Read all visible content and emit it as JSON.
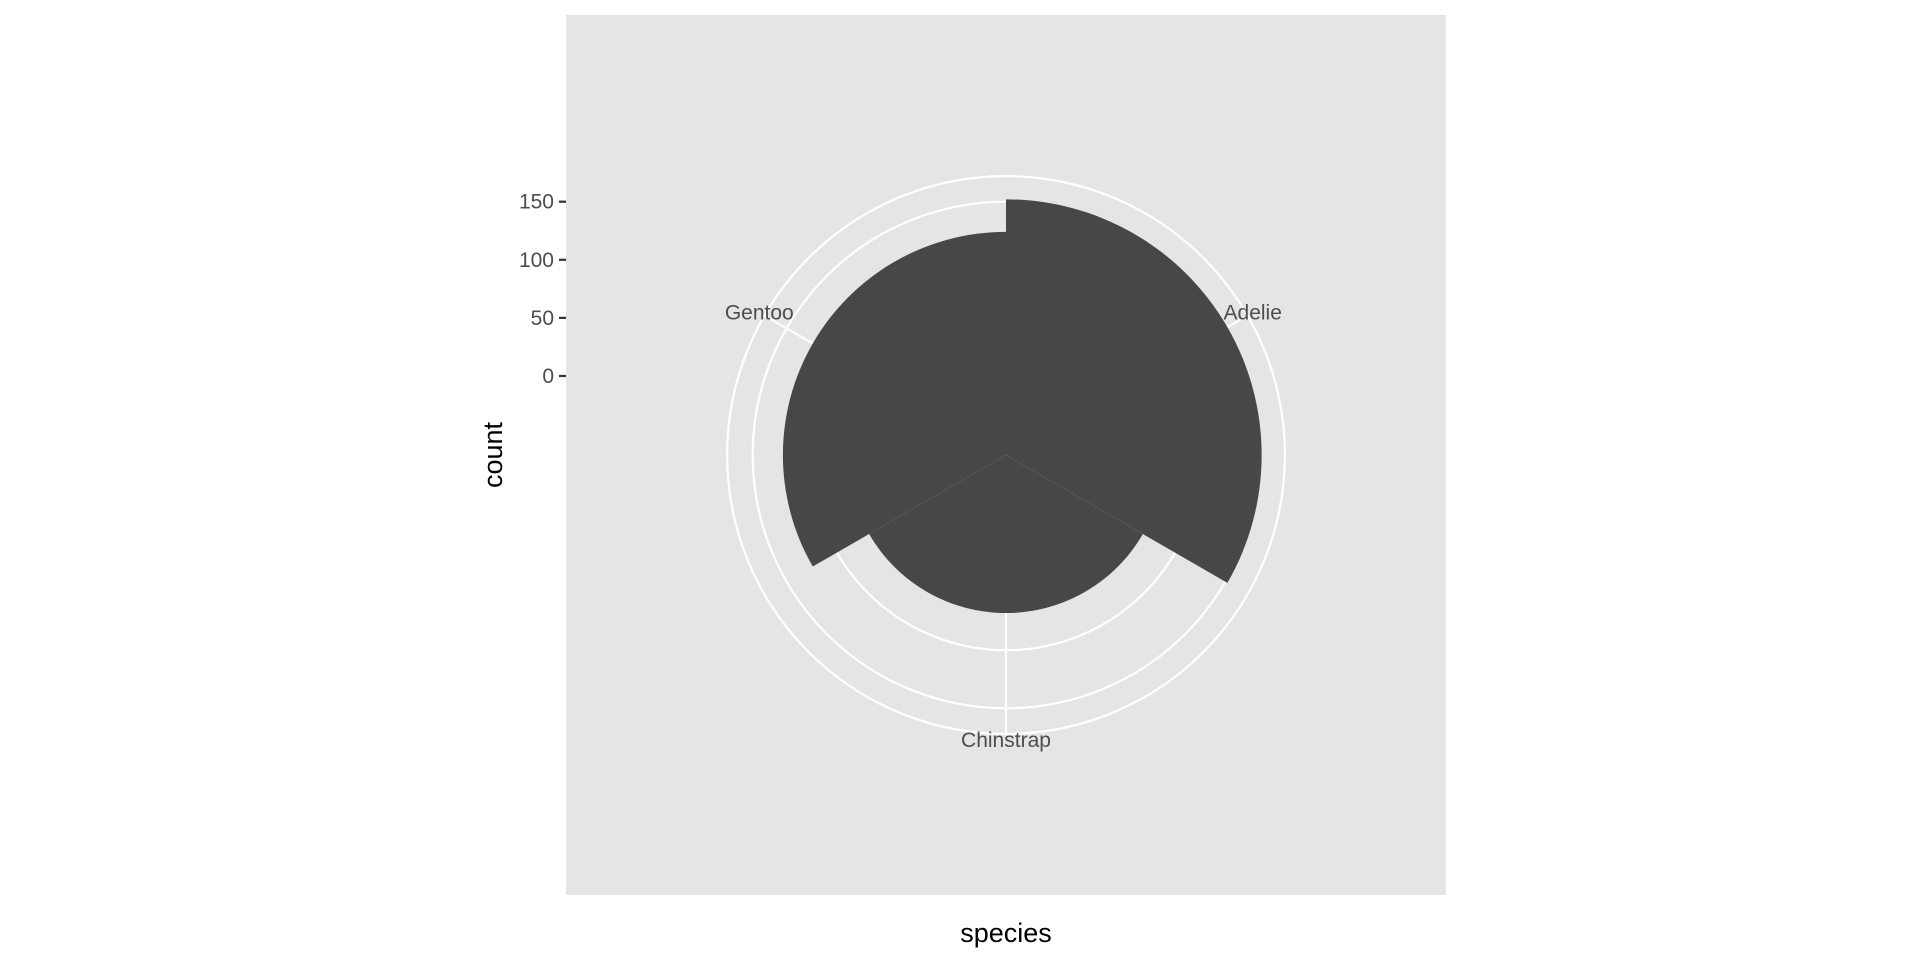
{
  "chart_data": {
    "type": "bar",
    "coord": "polar",
    "categories": [
      "Adelie",
      "Chinstrap",
      "Gentoo"
    ],
    "values": [
      152,
      68,
      124
    ],
    "xlabel": "species",
    "ylabel": "count",
    "y_ticks": [
      0,
      50,
      100,
      150
    ],
    "ylim": [
      -68,
      172
    ],
    "panel_background": "#e5e5e5",
    "bar_color": "#474747",
    "grid_color": "#ffffff",
    "grid": true,
    "legend": "none"
  }
}
